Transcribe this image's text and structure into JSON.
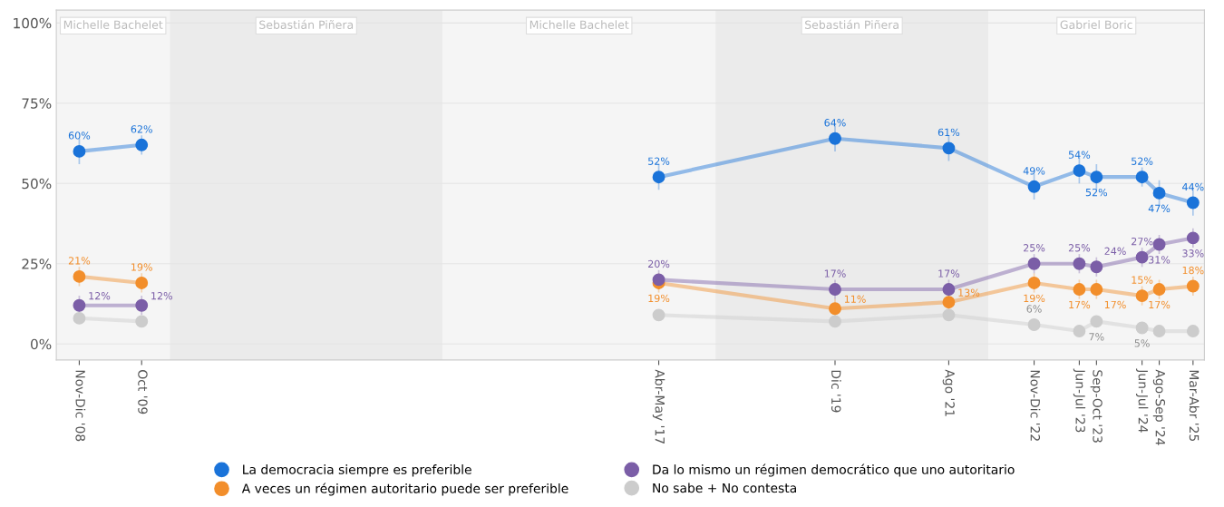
{
  "chart_data": {
    "type": "line",
    "x": [
      "2008-11",
      "2009-10",
      "2013-06",
      "2017-05",
      "2019-12",
      "2021-08",
      "2022-11",
      "2023-07",
      "2023-10",
      "2024-06",
      "2024-09",
      "2025-03"
    ],
    "series": [
      {
        "name": "La democracia siempre es preferible",
        "color": "#1a73d9",
        "values": [
          60,
          62,
          null,
          52,
          64,
          61,
          49,
          54,
          52,
          52,
          47,
          44
        ],
        "errors": [
          4,
          3,
          null,
          4,
          4,
          4,
          4,
          4,
          4,
          3,
          4,
          4
        ],
        "value_labels": [
          "60%",
          "62%",
          null,
          "52%",
          "64%",
          "61%",
          "49%",
          "54%",
          "52%",
          "52%",
          "47%",
          "44%"
        ]
      },
      {
        "name": "A veces un régimen autoritario puede ser preferible",
        "color": "#f28e2b",
        "values": [
          21,
          19,
          null,
          19,
          11,
          13,
          19,
          17,
          17,
          15,
          17,
          18
        ],
        "errors": [
          3,
          3,
          null,
          3,
          3,
          3,
          3,
          3,
          3,
          3,
          3,
          3
        ],
        "value_labels": [
          "21%",
          "19%",
          null,
          "19%",
          "11%",
          "13%",
          "19%",
          "17%",
          "17%",
          "15%",
          "17%",
          "18%"
        ]
      },
      {
        "name": "Da lo mismo un régimen democrático que uno autoritario",
        "color": "#7b5ea7",
        "values": [
          12,
          12,
          null,
          20,
          17,
          17,
          25,
          25,
          24,
          27,
          31,
          33
        ],
        "errors": [
          3,
          3,
          null,
          3,
          3,
          3,
          3,
          3,
          3,
          3,
          3,
          3
        ],
        "value_labels": [
          "12%",
          "12%",
          null,
          "20%",
          "17%",
          "17%",
          "25%",
          "25%",
          "24%",
          "27%",
          "31%",
          "33%"
        ]
      },
      {
        "name": "No sabe + No contesta",
        "color": "#cccccc",
        "values": [
          8,
          7,
          null,
          9,
          7,
          9,
          6,
          4,
          7,
          5,
          4,
          4
        ],
        "value_labels": [
          null,
          null,
          null,
          null,
          null,
          null,
          "6%",
          null,
          "7%",
          "5%",
          null,
          null
        ]
      }
    ],
    "xlim": [
      "2008-07",
      "2025-05"
    ],
    "xticks": [
      {
        "value": "2008-11",
        "label": "Nov-Dic '08"
      },
      {
        "value": "2009-10",
        "label": "Oct '09"
      },
      {
        "value": "2017-05",
        "label": "Abr-May '17"
      },
      {
        "value": "2019-12",
        "label": "Dic '19"
      },
      {
        "value": "2021-08",
        "label": "Ago '21"
      },
      {
        "value": "2022-11",
        "label": "Nov-Dic '22"
      },
      {
        "value": "2023-07",
        "label": "Jun-Jul '23"
      },
      {
        "value": "2023-10",
        "label": "Sep-Oct '23"
      },
      {
        "value": "2024-06",
        "label": "Jun-Jul '24"
      },
      {
        "value": "2024-09",
        "label": "Ago-Sep '24"
      },
      {
        "value": "2025-03",
        "label": "Mar-Abr '25"
      }
    ],
    "ylim": [
      -5,
      104
    ],
    "yticks": [
      {
        "value": 0,
        "label": "0%"
      },
      {
        "value": 25,
        "label": "25%"
      },
      {
        "value": 50,
        "label": "50%"
      },
      {
        "value": 75,
        "label": "75%"
      },
      {
        "value": 100,
        "label": "100%"
      }
    ],
    "bands": [
      {
        "axis": "x",
        "from": "2008-07",
        "to": "2010-03",
        "label": "Michelle Bachelet",
        "color": "#f5f5f5"
      },
      {
        "axis": "x",
        "from": "2010-03",
        "to": "2014-03",
        "label": "Sebastián Piñera",
        "color": "#ebebeb"
      },
      {
        "axis": "x",
        "from": "2014-03",
        "to": "2018-03",
        "label": "Michelle Bachelet",
        "color": "#f5f5f5"
      },
      {
        "axis": "x",
        "from": "2018-03",
        "to": "2022-03",
        "label": "Sebastián Piñera",
        "color": "#ebebeb"
      },
      {
        "axis": "x",
        "from": "2022-03",
        "to": "2025-05",
        "label": "Gabriel Boric",
        "color": "#f5f5f5"
      }
    ],
    "grid": "y",
    "legend": "bottom",
    "marker": "circle",
    "line_style": "solid"
  }
}
